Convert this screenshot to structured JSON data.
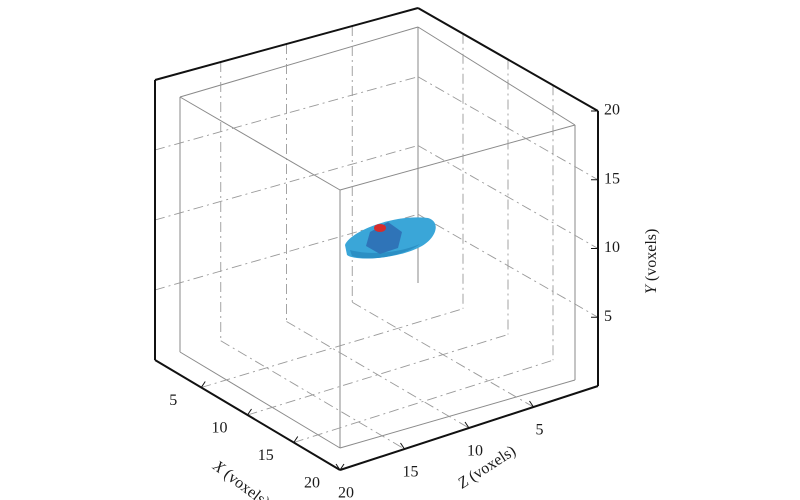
{
  "chart_data": {
    "type": "scatter",
    "title": "",
    "x_axis": {
      "label_var": "X",
      "label_unit": " (voxels)",
      "ticks": [
        "5",
        "10",
        "15",
        "20"
      ],
      "range": [
        0,
        20
      ]
    },
    "z_axis": {
      "label_var": "Z",
      "label_unit": " (voxels)",
      "ticks": [
        "20",
        "15",
        "10",
        "5"
      ],
      "range": [
        20,
        0
      ]
    },
    "y_axis": {
      "label_var": "Y",
      "label_unit": " (voxels)",
      "ticks": [
        "5",
        "10",
        "15",
        "20"
      ],
      "range": [
        0,
        20
      ]
    },
    "grid": true,
    "objects": [
      {
        "name": "",
        "shape": "elongated blob",
        "color": "#3aa6d8",
        "shade": "#2b8fc4",
        "center": {
          "x": 10,
          "y": 10.5,
          "z": 10
        }
      },
      {
        "name": "",
        "shape": "small polyhedron",
        "color": "#2f74b8",
        "center": {
          "x": 10,
          "y": 11,
          "z": 10
        }
      },
      {
        "name": "",
        "shape": "small marker",
        "color": "#d62c2c",
        "center": {
          "x": 10,
          "y": 11.7,
          "z": 10
        }
      }
    ]
  }
}
